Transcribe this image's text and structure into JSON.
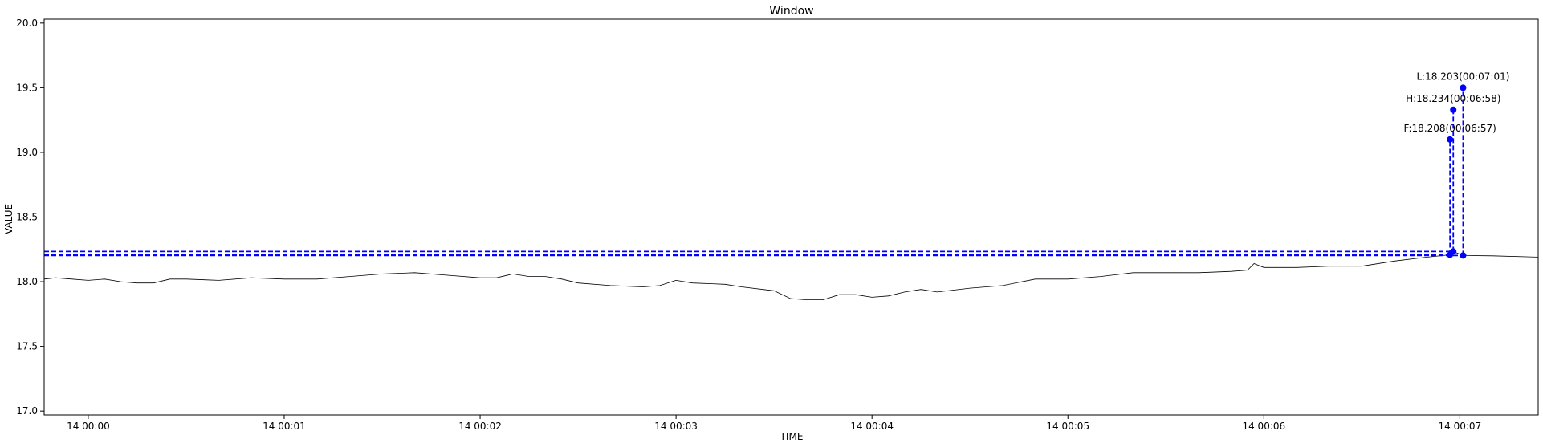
{
  "chart_data": {
    "type": "line",
    "title": "Window",
    "xlabel": "TIME",
    "ylabel": "VALUE",
    "xlim": [
      "23:59:46.5",
      "00:07:24"
    ],
    "ylim": [
      16.97,
      20.03
    ],
    "grid": false,
    "x_ticks": [
      {
        "time": "00:00:00",
        "label": "14 00:00"
      },
      {
        "time": "00:01:00",
        "label": "14 00:01"
      },
      {
        "time": "00:02:00",
        "label": "14 00:02"
      },
      {
        "time": "00:03:00",
        "label": "14 00:03"
      },
      {
        "time": "00:04:00",
        "label": "14 00:04"
      },
      {
        "time": "00:05:00",
        "label": "14 00:05"
      },
      {
        "time": "00:06:00",
        "label": "14 00:06"
      },
      {
        "time": "00:07:00",
        "label": "14 00:07"
      }
    ],
    "y_ticks": [
      "17.0",
      "17.5",
      "18.0",
      "18.5",
      "19.0",
      "19.5",
      "20.0"
    ],
    "series": [
      {
        "color": "#000000",
        "points": [
          [
            "23:59:46.5",
            18.02
          ],
          [
            "23:59:50",
            18.03
          ],
          [
            "23:59:55",
            18.02
          ],
          [
            "00:00:00",
            18.01
          ],
          [
            "00:00:05",
            18.02
          ],
          [
            "00:00:10",
            18.0
          ],
          [
            "00:00:15",
            17.99
          ],
          [
            "00:00:20",
            17.99
          ],
          [
            "00:00:25",
            18.02
          ],
          [
            "00:00:30",
            18.02
          ],
          [
            "00:00:40",
            18.01
          ],
          [
            "00:00:50",
            18.03
          ],
          [
            "00:01:00",
            18.02
          ],
          [
            "00:01:10",
            18.02
          ],
          [
            "00:01:20",
            18.04
          ],
          [
            "00:01:30",
            18.06
          ],
          [
            "00:01:40",
            18.07
          ],
          [
            "00:01:50",
            18.05
          ],
          [
            "00:02:00",
            18.03
          ],
          [
            "00:02:05",
            18.03
          ],
          [
            "00:02:10",
            18.06
          ],
          [
            "00:02:15",
            18.04
          ],
          [
            "00:02:20",
            18.04
          ],
          [
            "00:02:25",
            18.02
          ],
          [
            "00:02:30",
            17.99
          ],
          [
            "00:02:40",
            17.97
          ],
          [
            "00:02:50",
            17.96
          ],
          [
            "00:02:55",
            17.97
          ],
          [
            "00:03:00",
            18.01
          ],
          [
            "00:03:05",
            17.99
          ],
          [
            "00:03:15",
            17.98
          ],
          [
            "00:03:20",
            17.96
          ],
          [
            "00:03:30",
            17.93
          ],
          [
            "00:03:35",
            17.87
          ],
          [
            "00:03:40",
            17.86
          ],
          [
            "00:03:45",
            17.86
          ],
          [
            "00:03:50",
            17.9
          ],
          [
            "00:03:55",
            17.9
          ],
          [
            "00:04:00",
            17.88
          ],
          [
            "00:04:05",
            17.89
          ],
          [
            "00:04:10",
            17.92
          ],
          [
            "00:04:15",
            17.94
          ],
          [
            "00:04:20",
            17.92
          ],
          [
            "00:04:30",
            17.95
          ],
          [
            "00:04:40",
            17.97
          ],
          [
            "00:04:50",
            18.02
          ],
          [
            "00:05:00",
            18.02
          ],
          [
            "00:05:10",
            18.04
          ],
          [
            "00:05:20",
            18.07
          ],
          [
            "00:05:30",
            18.07
          ],
          [
            "00:05:40",
            18.07
          ],
          [
            "00:05:50",
            18.08
          ],
          [
            "00:05:55",
            18.09
          ],
          [
            "00:05:57",
            18.14
          ],
          [
            "00:06:00",
            18.11
          ],
          [
            "00:06:10",
            18.11
          ],
          [
            "00:06:20",
            18.12
          ],
          [
            "00:06:30",
            18.12
          ],
          [
            "00:06:40",
            18.16
          ],
          [
            "00:06:50",
            18.19
          ],
          [
            "00:06:57",
            18.208
          ],
          [
            "00:06:58",
            18.234
          ],
          [
            "00:07:01",
            18.203
          ],
          [
            "00:07:10",
            18.2
          ],
          [
            "00:07:24",
            18.19
          ]
        ]
      }
    ],
    "markers": [
      {
        "label": "F:18.208(00:06:57)",
        "time": "00:06:57",
        "value": 18.208,
        "label_y": 19.1,
        "color": "#0000ff"
      },
      {
        "label": "H:18.234(00:06:58)",
        "time": "00:06:58",
        "value": 18.234,
        "label_y": 19.33,
        "color": "#0000ff"
      },
      {
        "label": "L:18.203(00:07:01)",
        "time": "00:07:01",
        "value": 18.203,
        "label_y": 19.5,
        "color": "#0000ff"
      }
    ]
  }
}
